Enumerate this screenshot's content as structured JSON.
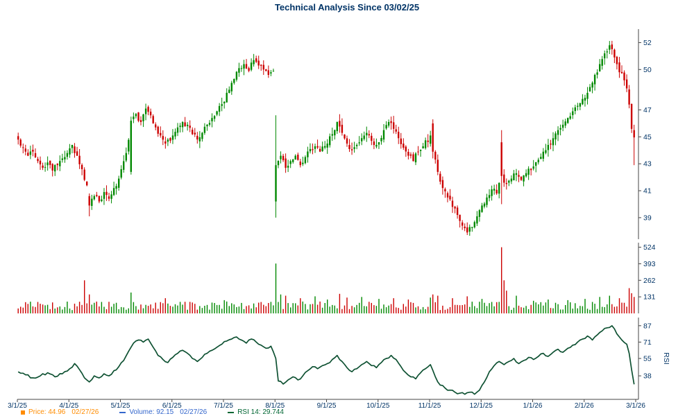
{
  "title": "Technical Analysis Since 03/02/25",
  "legend": {
    "price_label": "Price: 44.96",
    "price_date": "02/27/26",
    "volume_label": "Volume: 92.15",
    "volume_date": "02/27/26",
    "rsi_label": "RSI 14: 29.744"
  },
  "colors": {
    "title": "#003366",
    "axis_text": "#003366",
    "axis_line": "#444444",
    "up": "#008800",
    "down": "#cc0000",
    "rsi_line": "#0e5132",
    "price_legend": "#ff8c00",
    "volume_legend": "#3366cc",
    "rsi_legend": "#006633"
  },
  "chart_data": [
    {
      "type": "candlestick",
      "title": "Price",
      "n_days": 252,
      "x_ticks": [
        "3/1/25",
        "4/1/25",
        "5/1/25",
        "6/1/25",
        "7/1/25",
        "8/1/25",
        "9/1/25",
        "10/1/25",
        "11/1/25",
        "12/1/25",
        "1/1/26",
        "2/1/26",
        "3/1/26"
      ],
      "x_tick_days": [
        0,
        21,
        42,
        63,
        84,
        105,
        126,
        147,
        168,
        189,
        210,
        231,
        252
      ],
      "y_ticks": [
        52,
        50,
        47,
        45,
        43,
        41,
        39
      ],
      "ylim": [
        37.4,
        53.0
      ],
      "last_price": 44.96,
      "last_date": "02/27/26",
      "close_anchors": [
        [
          0,
          44.8
        ],
        [
          2,
          44.2
        ],
        [
          4,
          43.6
        ],
        [
          6,
          43.9
        ],
        [
          8,
          43.2
        ],
        [
          10,
          42.7
        ],
        [
          12,
          43.1
        ],
        [
          14,
          42.5
        ],
        [
          16,
          42.9
        ],
        [
          18,
          43.4
        ],
        [
          20,
          43.8
        ],
        [
          22,
          44.4
        ],
        [
          24,
          43.6
        ],
        [
          26,
          42.6
        ],
        [
          28,
          41.4
        ],
        [
          29,
          39.9
        ],
        [
          31,
          40.6
        ],
        [
          33,
          40.2
        ],
        [
          35,
          40.9
        ],
        [
          37,
          40.4
        ],
        [
          39,
          41.2
        ],
        [
          41,
          41.9
        ],
        [
          42,
          42.6
        ],
        [
          44,
          43.8
        ],
        [
          46,
          46.2
        ],
        [
          48,
          46.7
        ],
        [
          50,
          46.1
        ],
        [
          52,
          47.1
        ],
        [
          54,
          46.6
        ],
        [
          56,
          45.7
        ],
        [
          58,
          45.1
        ],
        [
          60,
          44.5
        ],
        [
          63,
          45.1
        ],
        [
          65,
          45.7
        ],
        [
          67,
          46.1
        ],
        [
          69,
          45.9
        ],
        [
          71,
          45.2
        ],
        [
          73,
          44.8
        ],
        [
          75,
          45.3
        ],
        [
          77,
          45.9
        ],
        [
          79,
          46.4
        ],
        [
          81,
          46.9
        ],
        [
          84,
          47.6
        ],
        [
          86,
          48.5
        ],
        [
          88,
          49.3
        ],
        [
          90,
          50.1
        ],
        [
          92,
          50.4
        ],
        [
          94,
          49.9
        ],
        [
          96,
          50.7
        ],
        [
          98,
          50.3
        ],
        [
          100,
          50.0
        ],
        [
          102,
          49.6
        ],
        [
          104,
          49.9
        ],
        [
          105,
          42.9
        ],
        [
          107,
          43.6
        ],
        [
          109,
          42.7
        ],
        [
          111,
          43.2
        ],
        [
          113,
          43.6
        ],
        [
          115,
          42.9
        ],
        [
          117,
          43.5
        ],
        [
          119,
          44.1
        ],
        [
          121,
          44.3
        ],
        [
          123,
          43.9
        ],
        [
          126,
          44.5
        ],
        [
          128,
          45.2
        ],
        [
          130,
          46.1
        ],
        [
          132,
          45.3
        ],
        [
          134,
          44.5
        ],
        [
          136,
          44.0
        ],
        [
          138,
          44.4
        ],
        [
          140,
          44.9
        ],
        [
          142,
          45.3
        ],
        [
          144,
          44.7
        ],
        [
          146,
          44.4
        ],
        [
          149,
          45.5
        ],
        [
          151,
          46.1
        ],
        [
          153,
          45.6
        ],
        [
          155,
          44.9
        ],
        [
          157,
          44.2
        ],
        [
          159,
          43.6
        ],
        [
          161,
          43.2
        ],
        [
          163,
          43.9
        ],
        [
          165,
          44.3
        ],
        [
          168,
          45.1
        ],
        [
          169,
          43.9
        ],
        [
          171,
          42.4
        ],
        [
          173,
          41.2
        ],
        [
          175,
          40.5
        ],
        [
          177,
          39.8
        ],
        [
          179,
          39.2
        ],
        [
          181,
          38.4
        ],
        [
          183,
          37.9
        ],
        [
          185,
          38.3
        ],
        [
          187,
          39.1
        ],
        [
          189,
          39.9
        ],
        [
          191,
          40.5
        ],
        [
          193,
          41.1
        ],
        [
          195,
          40.8
        ],
        [
          197,
          42.1
        ],
        [
          199,
          41.5
        ],
        [
          201,
          41.9
        ],
        [
          203,
          42.3
        ],
        [
          205,
          41.8
        ],
        [
          207,
          42.3
        ],
        [
          210,
          42.8
        ],
        [
          212,
          43.3
        ],
        [
          214,
          43.9
        ],
        [
          216,
          44.4
        ],
        [
          218,
          44.9
        ],
        [
          220,
          45.5
        ],
        [
          222,
          45.9
        ],
        [
          224,
          46.4
        ],
        [
          226,
          46.9
        ],
        [
          228,
          47.3
        ],
        [
          231,
          47.9
        ],
        [
          233,
          48.7
        ],
        [
          235,
          49.6
        ],
        [
          237,
          50.4
        ],
        [
          239,
          51.2
        ],
        [
          241,
          51.8
        ],
        [
          243,
          50.9
        ],
        [
          245,
          49.8
        ],
        [
          247,
          49.2
        ],
        [
          248,
          48.6
        ],
        [
          249,
          47.4
        ],
        [
          250,
          45.6
        ],
        [
          251,
          44.96
        ]
      ],
      "wide_range_days": [
        [
          29,
          40.8,
          39.1,
          40.6
        ],
        [
          46,
          46.5,
          42.2,
          42.4
        ],
        [
          105,
          46.6,
          39.0,
          40.2
        ],
        [
          169,
          46.3,
          43.4,
          46.0
        ],
        [
          197,
          45.5,
          40.0,
          44.6
        ],
        [
          251,
          45.9,
          42.9,
          45.5
        ]
      ]
    },
    {
      "type": "bar",
      "title": "Volume",
      "y_ticks": [
        524,
        393,
        262,
        131
      ],
      "ylim": [
        0,
        560
      ],
      "baseline_range": [
        26,
        94
      ],
      "last_value": 92.15,
      "spikes": [
        [
          27,
          262
        ],
        [
          29,
          150
        ],
        [
          46,
          165
        ],
        [
          60,
          120
        ],
        [
          84,
          105
        ],
        [
          105,
          395
        ],
        [
          107,
          150
        ],
        [
          109,
          140
        ],
        [
          115,
          120
        ],
        [
          121,
          135
        ],
        [
          126,
          110
        ],
        [
          131,
          155
        ],
        [
          134,
          125
        ],
        [
          140,
          130
        ],
        [
          147,
          115
        ],
        [
          153,
          120
        ],
        [
          159,
          110
        ],
        [
          168,
          125
        ],
        [
          169,
          150
        ],
        [
          171,
          140
        ],
        [
          177,
          120
        ],
        [
          183,
          135
        ],
        [
          189,
          115
        ],
        [
          197,
          524
        ],
        [
          198,
          262
        ],
        [
          199,
          180
        ],
        [
          203,
          140
        ],
        [
          210,
          100
        ],
        [
          216,
          110
        ],
        [
          224,
          105
        ],
        [
          231,
          115
        ],
        [
          237,
          130
        ],
        [
          241,
          140
        ],
        [
          245,
          120
        ],
        [
          249,
          200
        ],
        [
          250,
          160
        ],
        [
          251,
          130
        ]
      ]
    },
    {
      "type": "line",
      "title": "RSI",
      "axis_label": "RSI",
      "period": 14,
      "y_ticks": [
        87,
        71,
        55,
        38
      ],
      "ylim": [
        15,
        95
      ],
      "last_value": 29.744,
      "anchors": [
        [
          0,
          42
        ],
        [
          3,
          39
        ],
        [
          6,
          36
        ],
        [
          9,
          38
        ],
        [
          12,
          41
        ],
        [
          15,
          37
        ],
        [
          18,
          40
        ],
        [
          21,
          45
        ],
        [
          23,
          50
        ],
        [
          25,
          44
        ],
        [
          27,
          36
        ],
        [
          29,
          32
        ],
        [
          31,
          38
        ],
        [
          33,
          36
        ],
        [
          35,
          40
        ],
        [
          37,
          38
        ],
        [
          39,
          43
        ],
        [
          41,
          47
        ],
        [
          43,
          53
        ],
        [
          45,
          62
        ],
        [
          47,
          70
        ],
        [
          49,
          73
        ],
        [
          51,
          71
        ],
        [
          53,
          74
        ],
        [
          55,
          66
        ],
        [
          57,
          58
        ],
        [
          59,
          54
        ],
        [
          61,
          51
        ],
        [
          63,
          56
        ],
        [
          65,
          60
        ],
        [
          67,
          63
        ],
        [
          69,
          60
        ],
        [
          71,
          55
        ],
        [
          73,
          52
        ],
        [
          75,
          56
        ],
        [
          77,
          60
        ],
        [
          79,
          63
        ],
        [
          81,
          66
        ],
        [
          83,
          69
        ],
        [
          85,
          72
        ],
        [
          87,
          74
        ],
        [
          89,
          76
        ],
        [
          91,
          73
        ],
        [
          93,
          70
        ],
        [
          95,
          74
        ],
        [
          97,
          71
        ],
        [
          99,
          68
        ],
        [
          101,
          65
        ],
        [
          103,
          67
        ],
        [
          105,
          55
        ],
        [
          106,
          33
        ],
        [
          108,
          30
        ],
        [
          110,
          34
        ],
        [
          112,
          37
        ],
        [
          114,
          34
        ],
        [
          116,
          38
        ],
        [
          118,
          43
        ],
        [
          120,
          47
        ],
        [
          122,
          45
        ],
        [
          124,
          48
        ],
        [
          126,
          50
        ],
        [
          128,
          54
        ],
        [
          130,
          58
        ],
        [
          132,
          52
        ],
        [
          134,
          46
        ],
        [
          136,
          42
        ],
        [
          138,
          45
        ],
        [
          140,
          49
        ],
        [
          142,
          52
        ],
        [
          144,
          48
        ],
        [
          146,
          46
        ],
        [
          148,
          51
        ],
        [
          150,
          55
        ],
        [
          152,
          58
        ],
        [
          154,
          54
        ],
        [
          156,
          47
        ],
        [
          158,
          41
        ],
        [
          160,
          37
        ],
        [
          162,
          35
        ],
        [
          164,
          41
        ],
        [
          166,
          45
        ],
        [
          168,
          49
        ],
        [
          170,
          37
        ],
        [
          172,
          29
        ],
        [
          174,
          26
        ],
        [
          176,
          24
        ],
        [
          178,
          22
        ],
        [
          180,
          21
        ],
        [
          182,
          20
        ],
        [
          184,
          22
        ],
        [
          186,
          20
        ],
        [
          188,
          24
        ],
        [
          190,
          32
        ],
        [
          192,
          42
        ],
        [
          194,
          48
        ],
        [
          196,
          52
        ],
        [
          198,
          49
        ],
        [
          200,
          52
        ],
        [
          202,
          55
        ],
        [
          204,
          50
        ],
        [
          206,
          53
        ],
        [
          208,
          56
        ],
        [
          210,
          54
        ],
        [
          212,
          57
        ],
        [
          214,
          60
        ],
        [
          216,
          57
        ],
        [
          218,
          61
        ],
        [
          220,
          64
        ],
        [
          222,
          61
        ],
        [
          224,
          65
        ],
        [
          226,
          68
        ],
        [
          228,
          71
        ],
        [
          230,
          74
        ],
        [
          232,
          77
        ],
        [
          234,
          73
        ],
        [
          236,
          78
        ],
        [
          238,
          82
        ],
        [
          240,
          85
        ],
        [
          242,
          87
        ],
        [
          244,
          79
        ],
        [
          246,
          73
        ],
        [
          248,
          69
        ],
        [
          249,
          60
        ],
        [
          250,
          44
        ],
        [
          251,
          29.744
        ]
      ]
    }
  ]
}
